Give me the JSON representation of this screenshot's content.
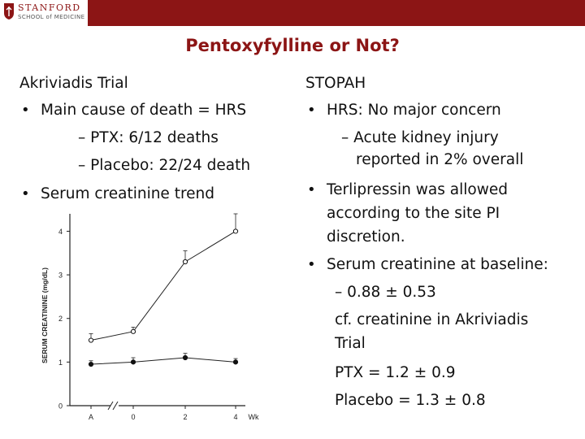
{
  "header": {
    "logo_line1": "STANFORD",
    "logo_line2": "SCHOOL of MEDICINE",
    "bar_color": "#8c1515"
  },
  "title": "Pentoxyfylline or Not?",
  "left": {
    "heading": "Akriviadis Trial",
    "b1": "Main cause of death = HRS",
    "s1": "– PTX: 6/12 deaths",
    "s2": "– Placebo: 22/24 death",
    "b2": "Serum creatinine trend"
  },
  "right": {
    "heading": "STOPAH",
    "b1": "HRS: No major concern",
    "s1a": "– Acute kidney injury",
    "s1b": "reported in 2% overall",
    "b2a": "Terlipressin was allowed",
    "b2b": "according to the site PI",
    "b2c": "discretion.",
    "b3": "Serum creatinine at baseline:",
    "s3": "–  0.88 ± 0.53",
    "s4a": "cf. creatinine in Akriviadis",
    "s4b": "Trial",
    "s5": "PTX = 1.2 ± 0.9",
    "s6": "Placebo = 1.3 ± 0.8",
    "bullet": "•"
  },
  "chart_data": {
    "type": "line",
    "ylabel": "SERUM CREATININE (mg/dL)",
    "x_ticks": [
      "A",
      "0",
      "2",
      "4",
      "Wk"
    ],
    "y_ticks": [
      "0",
      "1",
      "2",
      "3",
      "4"
    ],
    "ylim": [
      0,
      4.4
    ],
    "series": [
      {
        "values": [
          1.5,
          1.7,
          3.3,
          4.0
        ],
        "marker": "open-circle"
      },
      {
        "values": [
          0.95,
          1.0,
          1.1,
          1.0
        ],
        "marker": "filled-circle"
      }
    ]
  }
}
